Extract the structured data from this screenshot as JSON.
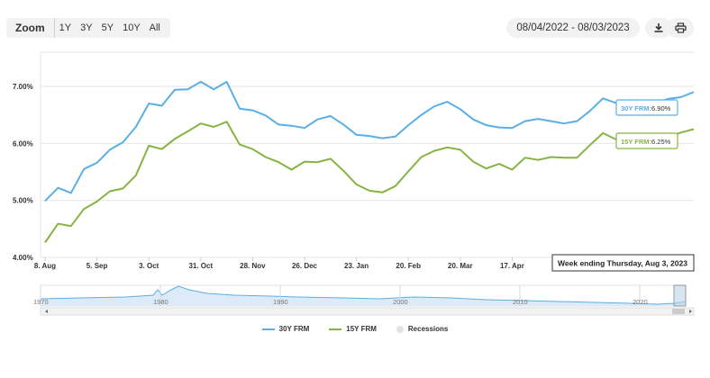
{
  "toolbar": {
    "zoom_label": "Zoom",
    "ranges": [
      "1Y",
      "3Y",
      "5Y",
      "10Y",
      "All"
    ],
    "date_range": "08/04/2022 - 08/03/2023",
    "download_icon": "download-icon",
    "print_icon": "printer-icon"
  },
  "colors": {
    "frm30": "#5aafe6",
    "frm15": "#86b442",
    "recession": "#e3e3e3"
  },
  "chart_data": {
    "type": "line",
    "title": "",
    "xlabel": "",
    "ylabel": "",
    "ylim": [
      4.0,
      7.6
    ],
    "y_ticks": [
      "4.00%",
      "5.00%",
      "6.00%",
      "7.00%"
    ],
    "x_ticks": [
      "8. Aug",
      "5. Sep",
      "3. Oct",
      "31. Oct",
      "28. Nov",
      "26. Dec",
      "23. Jan",
      "20. Feb",
      "20. Mar",
      "17. Apr",
      "15. Ma"
    ],
    "grid": "horizontal",
    "legend_position": "bottom",
    "series": [
      {
        "name": "30Y FRM",
        "color": "#5aafe6",
        "values": [
          4.99,
          5.22,
          5.13,
          5.55,
          5.66,
          5.89,
          6.02,
          6.29,
          6.7,
          6.66,
          6.94,
          6.95,
          7.08,
          6.95,
          7.08,
          6.61,
          6.58,
          6.49,
          6.33,
          6.31,
          6.27,
          6.42,
          6.48,
          6.33,
          6.15,
          6.13,
          6.09,
          6.12,
          6.32,
          6.5,
          6.65,
          6.73,
          6.6,
          6.42,
          6.32,
          6.28,
          6.27,
          6.39,
          6.43,
          6.39,
          6.35,
          6.39,
          6.57,
          6.79,
          6.71,
          6.69,
          6.67,
          6.71,
          6.78,
          6.81,
          6.9
        ]
      },
      {
        "name": "15Y FRM",
        "color": "#86b442",
        "values": [
          4.26,
          4.59,
          4.55,
          4.85,
          4.98,
          5.16,
          5.21,
          5.44,
          5.96,
          5.9,
          6.08,
          6.21,
          6.35,
          6.29,
          6.38,
          5.98,
          5.9,
          5.76,
          5.67,
          5.54,
          5.68,
          5.67,
          5.73,
          5.52,
          5.28,
          5.17,
          5.14,
          5.25,
          5.51,
          5.76,
          5.87,
          5.93,
          5.89,
          5.68,
          5.56,
          5.64,
          5.54,
          5.75,
          5.71,
          5.76,
          5.75,
          5.75,
          5.97,
          6.18,
          6.07,
          6.1,
          6.02,
          6.06,
          6.11,
          6.19,
          6.25
        ]
      }
    ],
    "tooltips": [
      {
        "series": "30Y FRM",
        "label": "30Y FRM:",
        "value": "6.90%"
      },
      {
        "series": "15Y FRM",
        "label": "15Y FRM:",
        "value": "6.25%"
      }
    ],
    "crosshair_label": "Week ending Thursday, Aug 3, 2023",
    "navigator": {
      "ticks": [
        "1970",
        "1980",
        "1990",
        "2000",
        "2010",
        "2020"
      ]
    },
    "legend": [
      {
        "name": "30Y FRM",
        "kind": "line",
        "color": "#5aafe6"
      },
      {
        "name": "15Y FRM",
        "kind": "line",
        "color": "#86b442"
      },
      {
        "name": "Recessions",
        "kind": "dot",
        "color": "#e3e3e3"
      }
    ]
  }
}
